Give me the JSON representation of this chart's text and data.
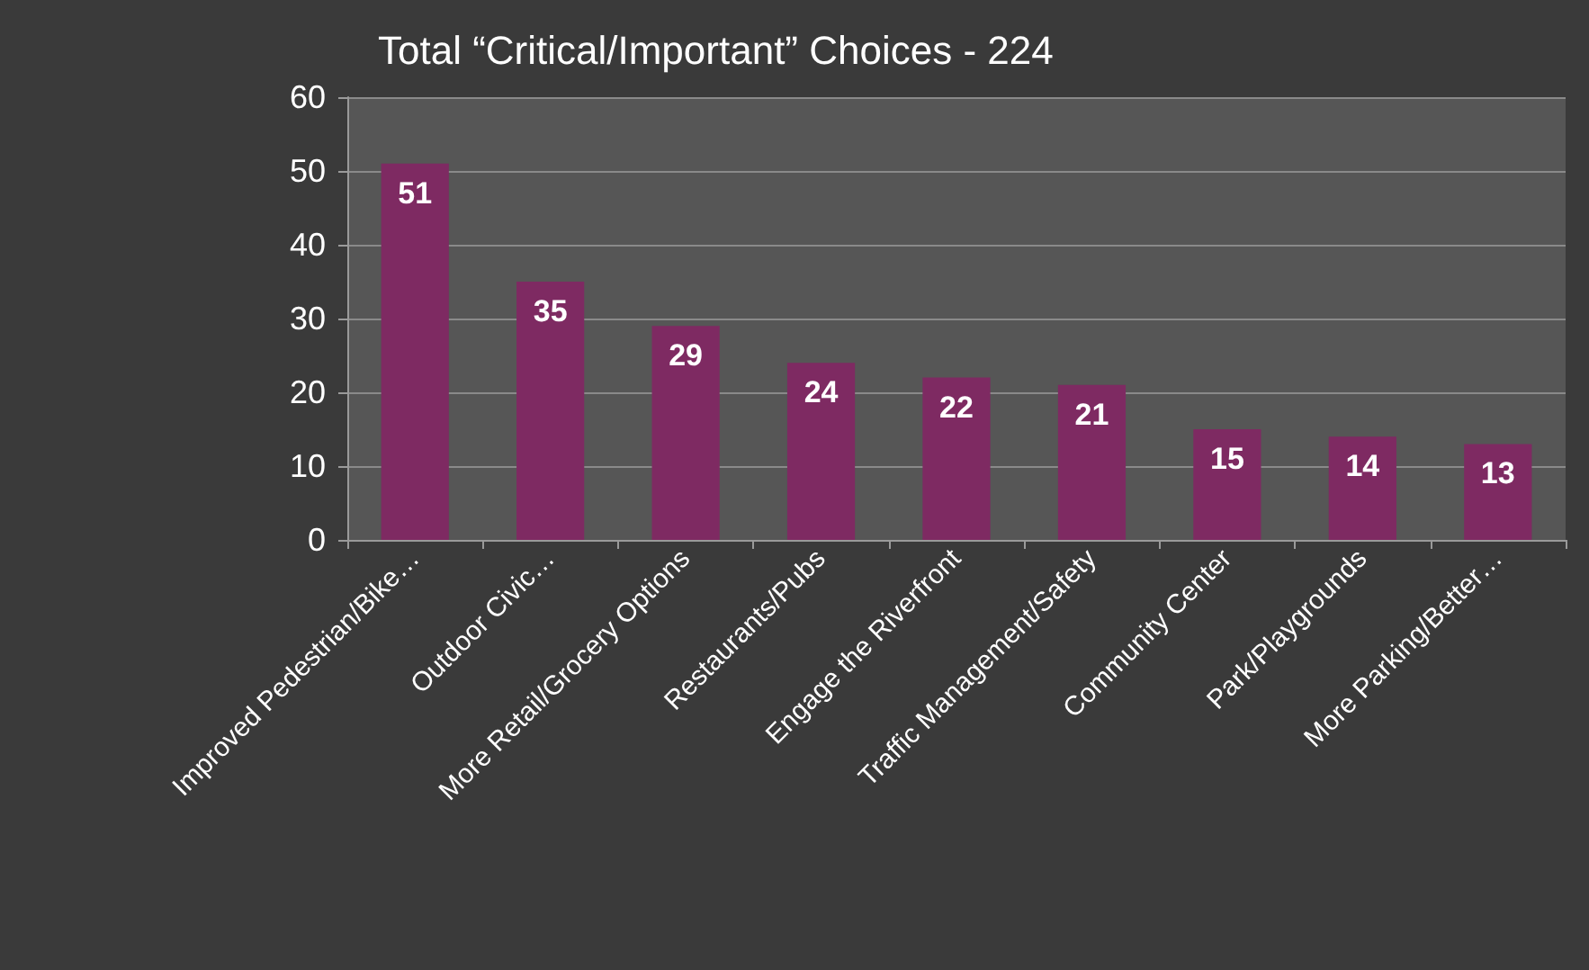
{
  "chart_data": {
    "type": "bar",
    "title": "Total “Critical/Important” Choices - 224",
    "categories": [
      "Improved Pedestrian/Bike…",
      "Outdoor Civic…",
      "More Retail/Grocery Options",
      "Restaurants/Pubs",
      "Engage the Riverfront",
      "Traffic Management/Safety",
      "Community Center",
      "Park/Playgrounds",
      "More Parking/Better…"
    ],
    "values": [
      51,
      35,
      29,
      24,
      22,
      21,
      15,
      14,
      13
    ],
    "color": "#7e2a62",
    "ylim": [
      0,
      60
    ],
    "yticks": [
      0,
      10,
      20,
      30,
      40,
      50,
      60
    ],
    "grid": "y",
    "data_labels": true
  }
}
